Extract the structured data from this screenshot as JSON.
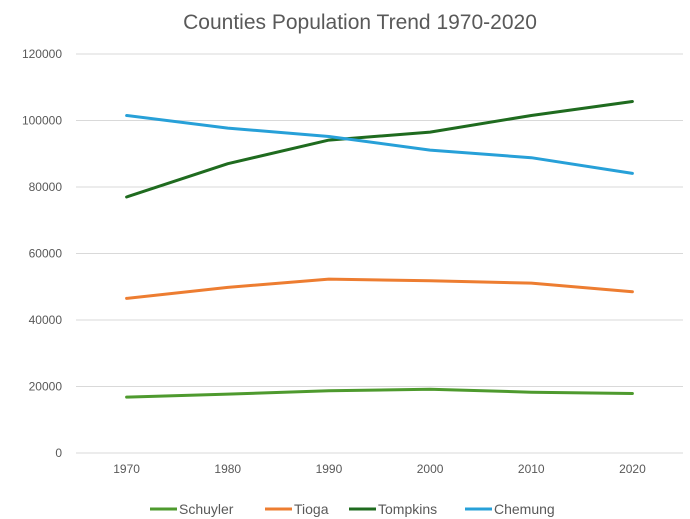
{
  "chart_data": {
    "type": "line",
    "title": "Counties Population Trend 1970-2020",
    "xlabel": "",
    "ylabel": "",
    "categories": [
      "1970",
      "1980",
      "1990",
      "2000",
      "2010",
      "2020"
    ],
    "ylim": [
      0,
      120000
    ],
    "yticks": [
      0,
      20000,
      40000,
      60000,
      80000,
      100000,
      120000
    ],
    "grid": true,
    "legend_position": "bottom",
    "series": [
      {
        "name": "Schuyler",
        "color": "#4e9a2e",
        "values": [
          16800,
          17700,
          18700,
          19200,
          18300,
          17900
        ]
      },
      {
        "name": "Tioga",
        "color": "#ed7d31",
        "values": [
          46500,
          49800,
          52300,
          51800,
          51100,
          48500
        ]
      },
      {
        "name": "Tompkins",
        "color": "#1f6b1f",
        "values": [
          77000,
          87000,
          94100,
          96500,
          101500,
          105700
        ]
      },
      {
        "name": "Chemung",
        "color": "#27a0d8",
        "values": [
          101500,
          97700,
          95200,
          91100,
          88800,
          84100
        ]
      }
    ]
  }
}
